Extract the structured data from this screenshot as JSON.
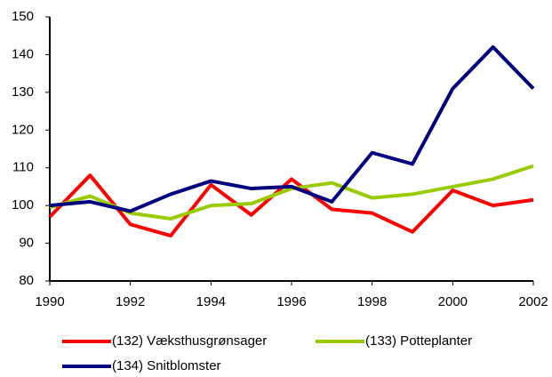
{
  "chart_data": {
    "type": "line",
    "x": [
      1990,
      1991,
      1992,
      1993,
      1994,
      1995,
      1996,
      1997,
      1998,
      1999,
      2000,
      2001,
      2002
    ],
    "series": [
      {
        "name": "(132) Væksthusgrønsager",
        "color": "#ff0000",
        "values": [
          97,
          108,
          95,
          92,
          105.5,
          97.5,
          107,
          99,
          98,
          93,
          104,
          100,
          101.5
        ]
      },
      {
        "name": "(133) Potteplanter",
        "color": "#99cc00",
        "values": [
          99.5,
          102.5,
          98,
          96.5,
          100,
          100.5,
          104.5,
          106,
          102,
          103,
          105,
          107,
          110.5
        ]
      },
      {
        "name": "(134) Snitblomster",
        "color": "#000080",
        "values": [
          100,
          101,
          98.5,
          103,
          106.5,
          104.5,
          105,
          101,
          114,
          111,
          131,
          142,
          131
        ]
      }
    ],
    "xlim": [
      1990,
      2002
    ],
    "xticks": [
      1990,
      1992,
      1994,
      1996,
      1998,
      2000,
      2002
    ],
    "ylim": [
      80,
      150
    ],
    "yticks": [
      80,
      90,
      100,
      110,
      120,
      130,
      140,
      150
    ],
    "grid": false,
    "legend": "bottom"
  }
}
